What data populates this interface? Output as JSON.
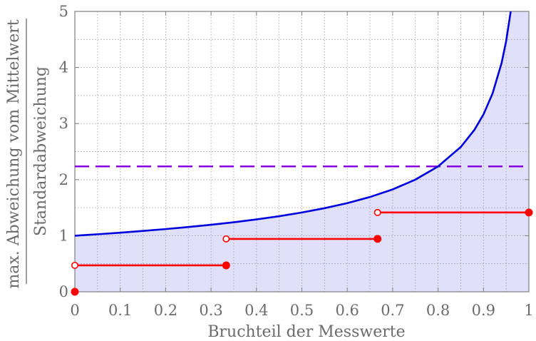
{
  "chart_data": {
    "type": "line",
    "xlabel": "Bruchteil der Messwerte",
    "ylabel_numerator": "max. Abweichung vom Mittelwert",
    "ylabel_denominator": "Standardabweichung",
    "xlim": [
      0,
      1
    ],
    "ylim": [
      0,
      5
    ],
    "x_ticks": [
      {
        "value": 0,
        "label": "0"
      },
      {
        "value": 0.1,
        "label": "0.1"
      },
      {
        "value": 0.2,
        "label": "0.2"
      },
      {
        "value": 0.3,
        "label": "0.3"
      },
      {
        "value": 0.4,
        "label": "0.4"
      },
      {
        "value": 0.5,
        "label": "0.5"
      },
      {
        "value": 0.6,
        "label": "0.6"
      },
      {
        "value": 0.7,
        "label": "0.7"
      },
      {
        "value": 0.8,
        "label": "0.8"
      },
      {
        "value": 0.9,
        "label": "0.9"
      },
      {
        "value": 1,
        "label": "1"
      }
    ],
    "y_ticks": [
      {
        "value": 0,
        "label": "0"
      },
      {
        "value": 1,
        "label": "1"
      },
      {
        "value": 2,
        "label": "2"
      },
      {
        "value": 3,
        "label": "3"
      },
      {
        "value": 4,
        "label": "4"
      },
      {
        "value": 5,
        "label": "5"
      }
    ],
    "grid": true,
    "curve": {
      "color": "#0000dd",
      "fill": "#e0e0fb",
      "x": [
        0,
        0.05,
        0.1,
        0.15,
        0.2,
        0.25,
        0.3,
        0.35,
        0.4,
        0.45,
        0.5,
        0.55,
        0.6,
        0.65,
        0.7,
        0.75,
        0.8,
        0.85,
        0.88,
        0.9,
        0.92,
        0.94,
        0.95,
        0.96
      ],
      "y": [
        1.0,
        1.026,
        1.054,
        1.085,
        1.118,
        1.155,
        1.195,
        1.24,
        1.291,
        1.348,
        1.414,
        1.491,
        1.581,
        1.69,
        1.826,
        2.0,
        2.236,
        2.582,
        2.887,
        3.162,
        3.536,
        4.082,
        4.472,
        5.0
      ]
    },
    "dashed_line": {
      "y": 2.236,
      "color": "#8800dd"
    },
    "steps": {
      "color": "#ff0000",
      "segments": [
        {
          "x_start": 0,
          "x_end": 0.3333,
          "y": 0.4714
        },
        {
          "x_start": 0.3333,
          "x_end": 0.6667,
          "y": 0.9428
        },
        {
          "x_start": 0.6667,
          "x_end": 1.0,
          "y": 1.4142
        }
      ],
      "filled_point": {
        "x": 0,
        "y": 0
      }
    }
  }
}
